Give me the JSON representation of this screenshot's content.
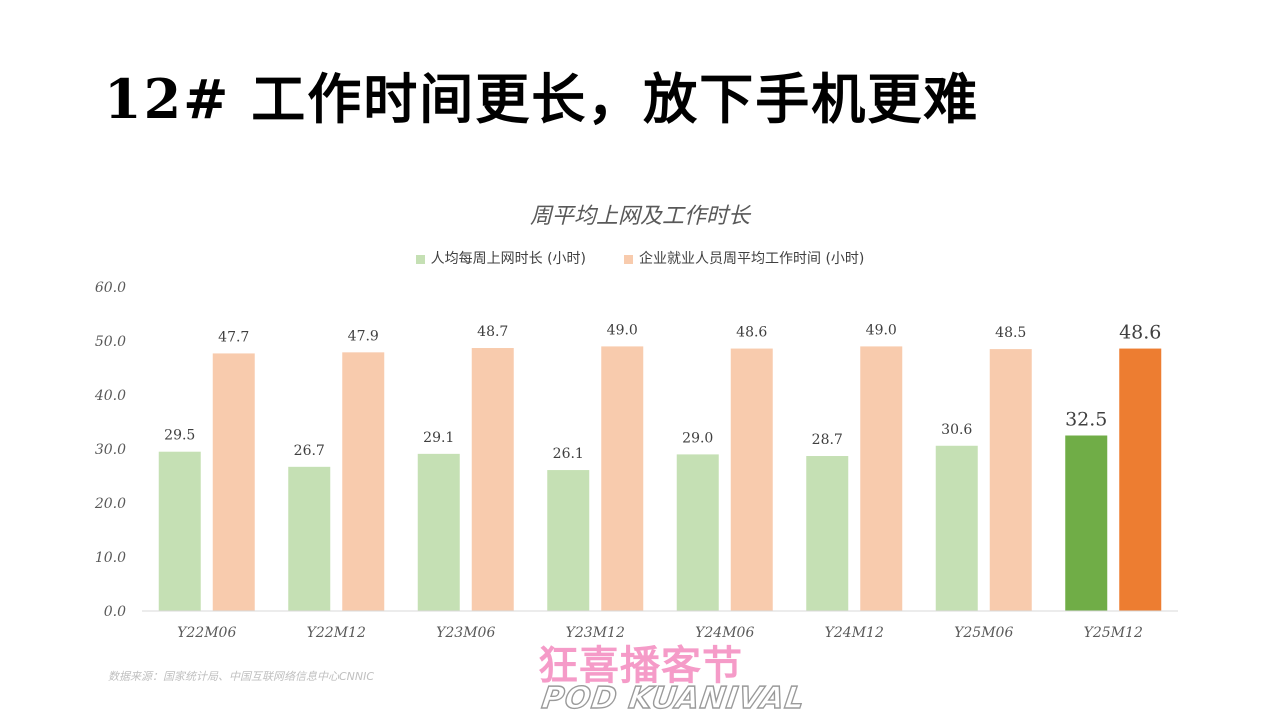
{
  "page": {
    "title": "12# 工作时间更长，放下手机更难",
    "source": "数据来源：国家统计局、中国互联网络信息中心CNNIC"
  },
  "logo": {
    "cn": "狂喜播客节",
    "en": "POD KUANIVAL"
  },
  "chart_data": {
    "type": "bar",
    "title": "周平均上网及工作时长",
    "categories": [
      "Y22M06",
      "Y22M12",
      "Y23M06",
      "Y23M12",
      "Y24M06",
      "Y24M12",
      "Y25M06",
      "Y25M12"
    ],
    "series": [
      {
        "name": "人均每周上网时长 (小时)",
        "color": "#c5e0b4",
        "highlight_color": "#70ad47",
        "values": [
          29.5,
          26.7,
          29.1,
          26.1,
          29.0,
          28.7,
          30.6,
          32.5
        ]
      },
      {
        "name": "企业就业人员周平均工作时间 (小时)",
        "color": "#f8cbad",
        "highlight_color": "#ed7d31",
        "values": [
          47.7,
          47.9,
          48.7,
          49.0,
          48.6,
          49.0,
          48.5,
          48.6
        ]
      }
    ],
    "highlight_category": "Y25M12",
    "ylim": [
      0,
      60
    ],
    "yticks": [
      "0.0",
      "10.0",
      "20.0",
      "30.0",
      "40.0",
      "50.0",
      "60.0"
    ],
    "grid": false,
    "legend_position": "top-center",
    "xlabel": "",
    "ylabel": ""
  }
}
